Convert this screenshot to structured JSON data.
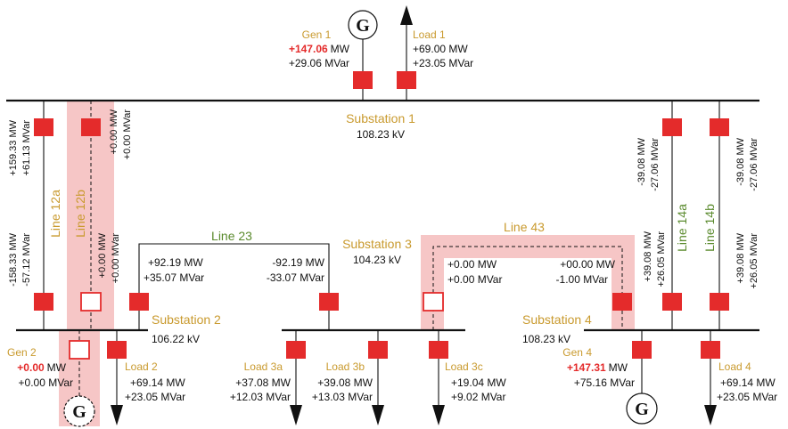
{
  "substations": {
    "s1": {
      "name": "Substation 1",
      "kv": "108.23 kV"
    },
    "s2": {
      "name": "Substation 2",
      "kv": "106.22 kV"
    },
    "s3": {
      "name": "Substation 3",
      "kv": "104.23 kV"
    },
    "s4": {
      "name": "Substation 4",
      "kv": "108.23 kV"
    }
  },
  "lines": {
    "l12a": "Line 12a",
    "l12b": "Line 12b",
    "l23": "Line 23",
    "l43": "Line 43",
    "l14a": "Line 14a",
    "l14b": "Line 14b"
  },
  "gens": {
    "gen1": {
      "name": "Gen 1",
      "mw": "+147.06",
      "mw_unit": "MW",
      "mvar": "+29.06 MVar",
      "symbol": "G"
    },
    "gen2": {
      "name": "Gen 2",
      "mw": "+0.00",
      "mw_unit": "MW",
      "mvar": "+0.00 MVar",
      "symbol": "G"
    },
    "gen4": {
      "name": "Gen 4",
      "mw": "+147.31",
      "mw_unit": "MW",
      "mvar": "+75.16 MVar",
      "symbol": "G"
    }
  },
  "loads": {
    "load1": {
      "name": "Load 1",
      "mw": "+69.00 MW",
      "mvar": "+23.05 MVar"
    },
    "load2": {
      "name": "Load 2",
      "mw": "+69.14 MW",
      "mvar": "+23.05 MVar"
    },
    "load3a": {
      "name": "Load 3a",
      "mw": "+37.08 MW",
      "mvar": "+12.03 MVar"
    },
    "load3b": {
      "name": "Load 3b",
      "mw": "+39.08 MW",
      "mvar": "+13.03 MVar"
    },
    "load3c": {
      "name": "Load 3c",
      "mw": "+19.04 MW",
      "mvar": "+9.02 MVar"
    },
    "load4": {
      "name": "Load 4",
      "mw": "+69.14 MW",
      "mvar": "+23.05 MVar"
    }
  },
  "flows": {
    "l12a_top": {
      "mw": "+159.33 MW",
      "mvar": "+61.13 MVar"
    },
    "l12a_bot": {
      "mw": "-158.33 MW",
      "mvar": "-57.12 MVar"
    },
    "l12b_top": {
      "mw": "+0.00 MW",
      "mvar": "+0.00 MVar"
    },
    "l12b_bot": {
      "mw": "+0.00 MW",
      "mvar": "+0.00 MVar"
    },
    "l23_s2": {
      "mw": "+92.19 MW",
      "mvar": "+35.07 MVar"
    },
    "l23_s3": {
      "mw": "-92.19 MW",
      "mvar": "-33.07 MVar"
    },
    "l43_s3": {
      "mw": "+0.00 MW",
      "mvar": "+0.00 MVar"
    },
    "l43_s4": {
      "mw": "+00.00 MW",
      "mvar": "-1.00 MVar"
    },
    "l14a_top": {
      "mw": "-39.08 MW",
      "mvar": "-27.06 MVar"
    },
    "l14a_bot": {
      "mw": "+39.08 MW",
      "mvar": "+26.05 MVar"
    },
    "l14b_top": {
      "mw": "-39.08 MW",
      "mvar": "-27.06 MVar"
    },
    "l14b_bot": {
      "mw": "+39.08 MW",
      "mvar": "+26.05 MVar"
    }
  },
  "colors": {
    "breaker_closed": "#e42b2b",
    "breaker_open_border": "#e42b2b",
    "highlight": "#f6c6c6",
    "label_gold": "#c99a2e",
    "label_green": "#5a8a2d",
    "generation_red": "#e42b2b"
  }
}
